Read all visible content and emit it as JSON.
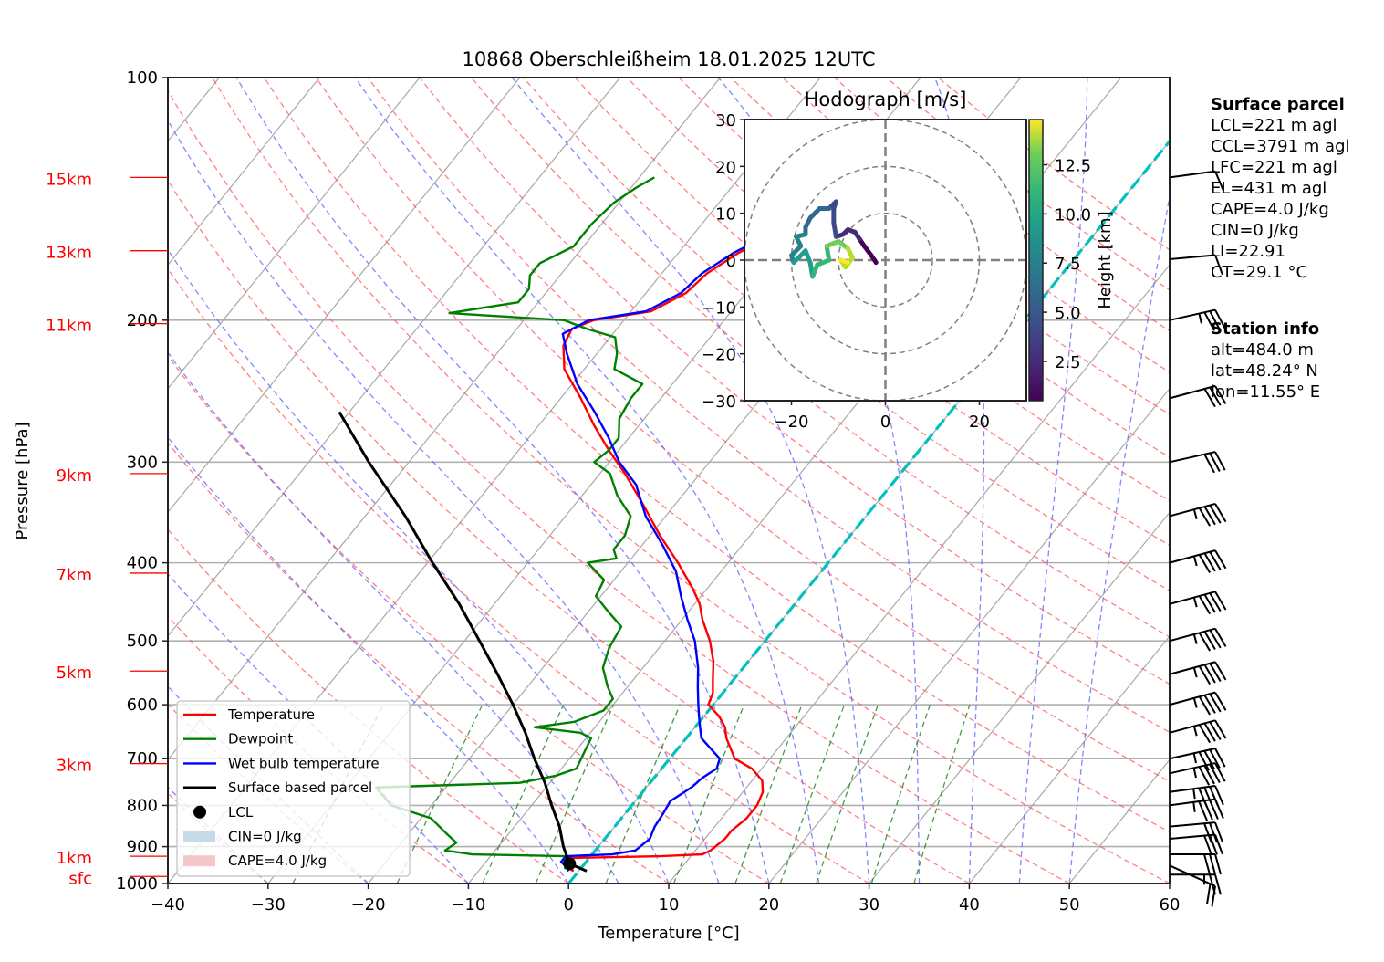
{
  "chart_data": {
    "type": "line",
    "subtype": "skew-t log-p",
    "title": "10868 Oberschleißheim 18.01.2025 12UTC",
    "xlabel": "Temperature [°C]",
    "ylabel": "Pressure [hPa]",
    "xlim": [
      -40,
      60
    ],
    "ylim": [
      1000,
      100
    ],
    "xticks": [
      "−40",
      "−30",
      "−20",
      "−10",
      "0",
      "10",
      "20",
      "30",
      "40",
      "50",
      "60"
    ],
    "xtick_values": [
      -40,
      -30,
      -20,
      -10,
      0,
      10,
      20,
      30,
      40,
      50,
      60
    ],
    "yticks": [
      "100",
      "200",
      "300",
      "400",
      "500",
      "600",
      "700",
      "800",
      "900",
      "1000"
    ],
    "ytick_values": [
      100,
      200,
      300,
      400,
      500,
      600,
      700,
      800,
      900,
      1000
    ],
    "height_labels": [
      {
        "label": "15km",
        "p": 133
      },
      {
        "label": "13km",
        "p": 164
      },
      {
        "label": "11km",
        "p": 202
      },
      {
        "label": "9km",
        "p": 310
      },
      {
        "label": "7km",
        "p": 412
      },
      {
        "label": "5km",
        "p": 545
      },
      {
        "label": "3km",
        "p": 710
      },
      {
        "label": "1km",
        "p": 925
      },
      {
        "label": "sfc",
        "p": 980
      }
    ],
    "highlight_isotherm": 0,
    "legend": {
      "position": "lower-left",
      "entries": [
        {
          "label": "Temperature",
          "color": "#ff0000",
          "kind": "line"
        },
        {
          "label": "Dewpoint",
          "color": "#008000",
          "kind": "line"
        },
        {
          "label": "Wet bulb temperature",
          "color": "#0000ff",
          "kind": "line"
        },
        {
          "label": "Surface based parcel",
          "color": "#000000",
          "kind": "line"
        },
        {
          "label": "LCL",
          "color": "#000000",
          "kind": "marker"
        },
        {
          "label": "CIN=0 J/kg",
          "color": "#c6dbe9",
          "kind": "patch"
        },
        {
          "label": "CAPE=4.0 J/kg",
          "color": "#f4c7ca",
          "kind": "patch"
        }
      ]
    },
    "series": [
      {
        "name": "Temperature",
        "color": "#ff0000",
        "points": [
          [
            965,
            -0.5
          ],
          [
            955,
            -1.5
          ],
          [
            945,
            -2.0
          ],
          [
            930,
            -2.5
          ],
          [
            925,
            7.0
          ],
          [
            920,
            11.0
          ],
          [
            910,
            11.5
          ],
          [
            880,
            12.0
          ],
          [
            860,
            12.0
          ],
          [
            830,
            12.5
          ],
          [
            800,
            12.5
          ],
          [
            770,
            12.0
          ],
          [
            745,
            11.0
          ],
          [
            720,
            9.0
          ],
          [
            700,
            6.5
          ],
          [
            660,
            4.0
          ],
          [
            640,
            3.0
          ],
          [
            620,
            1.5
          ],
          [
            600,
            -0.5
          ],
          [
            580,
            -1.0
          ],
          [
            560,
            -2.0
          ],
          [
            530,
            -3.5
          ],
          [
            500,
            -5.5
          ],
          [
            470,
            -8.0
          ],
          [
            450,
            -9.5
          ],
          [
            430,
            -11.5
          ],
          [
            400,
            -15.0
          ],
          [
            370,
            -19.0
          ],
          [
            340,
            -23.0
          ],
          [
            310,
            -27.5
          ],
          [
            290,
            -31.0
          ],
          [
            270,
            -34.5
          ],
          [
            250,
            -38.0
          ],
          [
            230,
            -42.0
          ],
          [
            215,
            -44.0
          ],
          [
            205,
            -44.5
          ],
          [
            200,
            -43.0
          ],
          [
            195,
            -38.0
          ],
          [
            185,
            -36.0
          ],
          [
            175,
            -35.5
          ],
          [
            165,
            -34.0
          ],
          [
            155,
            -31.5
          ],
          [
            147,
            -30.0
          ],
          [
            140,
            -28.0
          ],
          [
            135,
            -26.5
          ],
          [
            130,
            -26.0
          ]
        ]
      },
      {
        "name": "Dewpoint",
        "color": "#008000",
        "points": [
          [
            960,
            -1.5
          ],
          [
            950,
            -1.8
          ],
          [
            940,
            -2.2
          ],
          [
            925,
            -2.5
          ],
          [
            920,
            -12.0
          ],
          [
            910,
            -15.0
          ],
          [
            890,
            -14.5
          ],
          [
            870,
            -16.0
          ],
          [
            830,
            -19.0
          ],
          [
            800,
            -24.0
          ],
          [
            760,
            -27.0
          ],
          [
            750,
            -13.0
          ],
          [
            735,
            -10.0
          ],
          [
            720,
            -8.5
          ],
          [
            690,
            -9.0
          ],
          [
            660,
            -9.5
          ],
          [
            650,
            -11.0
          ],
          [
            640,
            -16.0
          ],
          [
            630,
            -12.5
          ],
          [
            610,
            -10.5
          ],
          [
            590,
            -10.5
          ],
          [
            570,
            -12.0
          ],
          [
            540,
            -14.0
          ],
          [
            510,
            -15.0
          ],
          [
            480,
            -15.5
          ],
          [
            460,
            -18.0
          ],
          [
            440,
            -20.5
          ],
          [
            420,
            -21.0
          ],
          [
            400,
            -24.0
          ],
          [
            395,
            -21.5
          ],
          [
            385,
            -22.5
          ],
          [
            370,
            -22.5
          ],
          [
            350,
            -23.5
          ],
          [
            330,
            -26.5
          ],
          [
            310,
            -29.0
          ],
          [
            300,
            -31.5
          ],
          [
            290,
            -31.0
          ],
          [
            280,
            -31.0
          ],
          [
            265,
            -32.5
          ],
          [
            250,
            -33.0
          ],
          [
            240,
            -33.0
          ],
          [
            230,
            -37.0
          ],
          [
            220,
            -38.0
          ],
          [
            210,
            -39.5
          ],
          [
            205,
            -43.0
          ],
          [
            200,
            -46.0
          ],
          [
            196,
            -58.0
          ],
          [
            190,
            -52.0
          ],
          [
            183,
            -52.0
          ],
          [
            176,
            -53.0
          ],
          [
            170,
            -53.0
          ],
          [
            162,
            -51.0
          ],
          [
            152,
            -51.0
          ],
          [
            143,
            -50.5
          ],
          [
            137,
            -49.5
          ],
          [
            133,
            -48.5
          ]
        ]
      },
      {
        "name": "Wet bulb temperature",
        "color": "#0000ff",
        "points": [
          [
            965,
            -1.0
          ],
          [
            950,
            -1.8
          ],
          [
            940,
            -2.5
          ],
          [
            925,
            -2.5
          ],
          [
            920,
            2.0
          ],
          [
            910,
            4.0
          ],
          [
            880,
            4.5
          ],
          [
            850,
            4.0
          ],
          [
            820,
            3.8
          ],
          [
            790,
            3.5
          ],
          [
            760,
            4.5
          ],
          [
            740,
            4.8
          ],
          [
            720,
            5.5
          ],
          [
            700,
            5.0
          ],
          [
            660,
            1.5
          ],
          [
            640,
            0.5
          ],
          [
            620,
            -0.5
          ],
          [
            600,
            -1.5
          ],
          [
            570,
            -3.0
          ],
          [
            540,
            -4.5
          ],
          [
            500,
            -7.0
          ],
          [
            470,
            -9.5
          ],
          [
            440,
            -12.0
          ],
          [
            410,
            -14.5
          ],
          [
            380,
            -18.0
          ],
          [
            350,
            -22.0
          ],
          [
            320,
            -25.5
          ],
          [
            300,
            -29.0
          ],
          [
            280,
            -32.0
          ],
          [
            260,
            -35.5
          ],
          [
            240,
            -39.5
          ],
          [
            220,
            -43.0
          ],
          [
            208,
            -45.0
          ],
          [
            200,
            -43.5
          ],
          [
            195,
            -38.5
          ],
          [
            185,
            -36.5
          ],
          [
            175,
            -36.0
          ],
          [
            165,
            -34.5
          ],
          [
            155,
            -32.0
          ],
          [
            147,
            -30.5
          ],
          [
            140,
            -28.5
          ],
          [
            135,
            -27.0
          ],
          [
            130,
            -26.5
          ]
        ]
      },
      {
        "name": "Surface based parcel",
        "color": "#000000",
        "points": [
          [
            965,
            0.8
          ],
          [
            945,
            -1.5
          ],
          [
            900,
            -3.5
          ],
          [
            850,
            -5.5
          ],
          [
            800,
            -8.0
          ],
          [
            750,
            -10.5
          ],
          [
            700,
            -13.5
          ],
          [
            650,
            -16.5
          ],
          [
            600,
            -20.0
          ],
          [
            550,
            -24.0
          ],
          [
            500,
            -28.5
          ],
          [
            450,
            -33.5
          ],
          [
            400,
            -39.5
          ],
          [
            350,
            -46.0
          ],
          [
            300,
            -54.0
          ],
          [
            260,
            -61.0
          ]
        ]
      }
    ],
    "lcl": {
      "p": 945,
      "t": -1.5
    },
    "hodograph": {
      "title": "Hodograph [m/s]",
      "xlim": [
        -30,
        30
      ],
      "ylim": [
        -30,
        30
      ],
      "xticks": [
        "−20",
        "0",
        "20"
      ],
      "yticks": [
        "30",
        "20",
        "10",
        "0",
        "−10",
        "−20",
        "−30"
      ],
      "rings": [
        10,
        20,
        30
      ],
      "colorbar": {
        "label": "Height [km]",
        "ticks": [
          "2.5",
          "5.0",
          "7.5",
          "10.0",
          "12.5"
        ],
        "tick_values": [
          2.5,
          5.0,
          7.5,
          10.0,
          12.5
        ],
        "range": [
          0.5,
          14.8
        ],
        "colormap": "viridis"
      },
      "points": [
        {
          "u": -2,
          "v": -0.5,
          "h": 0.5
        },
        {
          "u": -3,
          "v": 1,
          "h": 1.0
        },
        {
          "u": -4.5,
          "v": 3,
          "h": 1.5
        },
        {
          "u": -5.5,
          "v": 4.5,
          "h": 2.0
        },
        {
          "u": -6.5,
          "v": 6,
          "h": 2.5
        },
        {
          "u": -8,
          "v": 6.5,
          "h": 3.0
        },
        {
          "u": -9,
          "v": 5.5,
          "h": 3.3
        },
        {
          "u": -10.5,
          "v": 5,
          "h": 3.6
        },
        {
          "u": -11,
          "v": 8,
          "h": 4.0
        },
        {
          "u": -11,
          "v": 11,
          "h": 4.3
        },
        {
          "u": -10.5,
          "v": 12.5,
          "h": 4.6
        },
        {
          "u": -12,
          "v": 11,
          "h": 5.0
        },
        {
          "u": -14,
          "v": 11,
          "h": 5.4
        },
        {
          "u": -16,
          "v": 9,
          "h": 5.8
        },
        {
          "u": -17,
          "v": 7,
          "h": 6.2
        },
        {
          "u": -17,
          "v": 5.5,
          "h": 6.6
        },
        {
          "u": -19,
          "v": 5,
          "h": 7.0
        },
        {
          "u": -18,
          "v": 3,
          "h": 7.3
        },
        {
          "u": -20,
          "v": 1,
          "h": 7.6
        },
        {
          "u": -19.5,
          "v": -0.5,
          "h": 8.0
        },
        {
          "u": -17,
          "v": 2,
          "h": 8.5
        },
        {
          "u": -16,
          "v": -0.5,
          "h": 9.0
        },
        {
          "u": -15.5,
          "v": -3.5,
          "h": 9.5
        },
        {
          "u": -14.5,
          "v": -1,
          "h": 10.0
        },
        {
          "u": -12,
          "v": 0,
          "h": 10.5
        },
        {
          "u": -12.5,
          "v": 3,
          "h": 11.0
        },
        {
          "u": -10,
          "v": 4,
          "h": 11.5
        },
        {
          "u": -8,
          "v": 2.5,
          "h": 12.0
        },
        {
          "u": -7,
          "v": 0.5,
          "h": 12.5
        },
        {
          "u": -8.5,
          "v": -1.5,
          "h": 13.0
        },
        {
          "u": -9.5,
          "v": 0,
          "h": 13.5
        },
        {
          "u": -8,
          "v": -0.5,
          "h": 14.0
        }
      ]
    },
    "wind_barbs": [
      {
        "p": 133,
        "dir": 315,
        "speed_kt": 10
      },
      {
        "p": 168,
        "dir": 310,
        "speed_kt": 10
      },
      {
        "p": 200,
        "dir": 325,
        "speed_kt": 25
      },
      {
        "p": 250,
        "dir": 330,
        "speed_kt": 30
      },
      {
        "p": 300,
        "dir": 325,
        "speed_kt": 30
      },
      {
        "p": 350,
        "dir": 330,
        "speed_kt": 35
      },
      {
        "p": 400,
        "dir": 330,
        "speed_kt": 35
      },
      {
        "p": 450,
        "dir": 330,
        "speed_kt": 35
      },
      {
        "p": 500,
        "dir": 330,
        "speed_kt": 35
      },
      {
        "p": 550,
        "dir": 330,
        "speed_kt": 35
      },
      {
        "p": 600,
        "dir": 330,
        "speed_kt": 35
      },
      {
        "p": 650,
        "dir": 330,
        "speed_kt": 35
      },
      {
        "p": 700,
        "dir": 325,
        "speed_kt": 35
      },
      {
        "p": 730,
        "dir": 325,
        "speed_kt": 35
      },
      {
        "p": 770,
        "dir": 315,
        "speed_kt": 35
      },
      {
        "p": 800,
        "dir": 315,
        "speed_kt": 35
      },
      {
        "p": 850,
        "dir": 310,
        "speed_kt": 30
      },
      {
        "p": 880,
        "dir": 310,
        "speed_kt": 30
      },
      {
        "p": 920,
        "dir": 300,
        "speed_kt": 30
      },
      {
        "p": 950,
        "dir": 250,
        "speed_kt": 20
      },
      {
        "p": 975,
        "dir": 300,
        "speed_kt": 15
      }
    ]
  },
  "surface_parcel": {
    "heading": "Surface parcel",
    "lines": [
      "LCL=221 m agl",
      "CCL=3791 m agl",
      "LFC=221 m agl",
      "EL=431 m agl",
      "CAPE=4.0 J/kg",
      "CIN=0 J/kg",
      "LI=22.91",
      "CT=29.1 °C"
    ]
  },
  "station_info": {
    "heading": "Station info",
    "lines": [
      "alt=484.0 m",
      "lat=48.24° N",
      "lon=11.55° E"
    ]
  }
}
